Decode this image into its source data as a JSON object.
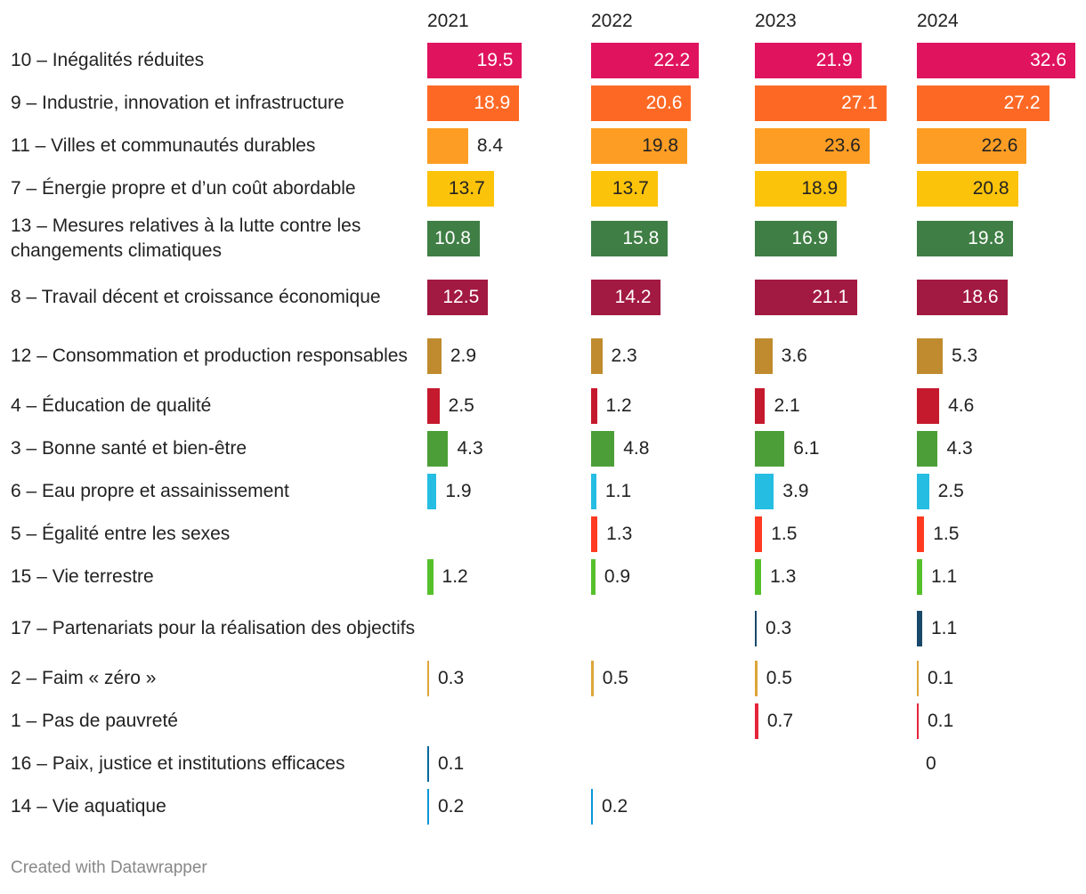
{
  "chart_data": {
    "type": "bar",
    "layout": "small-multiples-horizontal",
    "years": [
      "2021",
      "2022",
      "2023",
      "2024"
    ],
    "xlim": [
      0,
      32.6
    ],
    "rows": [
      {
        "label": "10 – Inégalités réduites",
        "color": "#e0135f",
        "values": [
          19.5,
          22.2,
          21.9,
          32.6
        ]
      },
      {
        "label": "9 – Industrie, innovation et infrastructure",
        "color": "#fd6925",
        "values": [
          18.9,
          20.6,
          27.1,
          27.2
        ]
      },
      {
        "label": "11 – Villes et communautés durables",
        "color": "#fd9d24",
        "values": [
          8.4,
          19.8,
          23.6,
          22.6
        ]
      },
      {
        "label": "7 – Énergie propre et d’un coût abordable",
        "color": "#fcc30b",
        "values": [
          13.7,
          13.7,
          18.9,
          20.8
        ]
      },
      {
        "label": "13 – Mesures relatives à la lutte contre les changements climatiques",
        "color": "#3f7e44",
        "values": [
          10.8,
          15.8,
          16.9,
          19.8
        ]
      },
      {
        "label": "8 – Travail décent et croissance économique",
        "color": "#a21942",
        "values": [
          12.5,
          14.2,
          21.1,
          18.6
        ]
      },
      {
        "label": "12 – Consommation et production responsables",
        "color": "#bf8b2e",
        "values": [
          2.9,
          2.3,
          3.6,
          5.3
        ]
      },
      {
        "label": "4 – Éducation de qualité",
        "color": "#c5192d",
        "values": [
          2.5,
          1.2,
          2.1,
          4.6
        ]
      },
      {
        "label": "3 – Bonne santé et bien-être",
        "color": "#4c9f38",
        "values": [
          4.3,
          4.8,
          6.1,
          4.3
        ]
      },
      {
        "label": "6 – Eau propre et assainissement",
        "color": "#26bde2",
        "values": [
          1.9,
          1.1,
          3.9,
          2.5
        ]
      },
      {
        "label": "5 – Égalité entre les sexes",
        "color": "#ff3a21",
        "values": [
          null,
          1.3,
          1.5,
          1.5
        ]
      },
      {
        "label": "15 – Vie terrestre",
        "color": "#56c02b",
        "values": [
          1.2,
          0.9,
          1.3,
          1.1
        ]
      },
      {
        "label": "17 – Partenariats pour la réalisation des objectifs",
        "color": "#19486a",
        "values": [
          null,
          null,
          0.3,
          1.1
        ]
      },
      {
        "label": "2 – Faim « zéro »",
        "color": "#dda63a",
        "values": [
          0.3,
          0.5,
          0.5,
          0.1
        ]
      },
      {
        "label": "1 – Pas de pauvreté",
        "color": "#e5243b",
        "values": [
          null,
          null,
          0.7,
          0.1
        ]
      },
      {
        "label": "16 – Paix, justice et institutions efficaces",
        "color": "#00689d",
        "values": [
          0.1,
          null,
          null,
          0
        ]
      },
      {
        "label": "14 – Vie aquatique",
        "color": "#0a97d9",
        "values": [
          0.2,
          0.2,
          null,
          null
        ]
      }
    ]
  },
  "footer": "Created with Datawrapper"
}
